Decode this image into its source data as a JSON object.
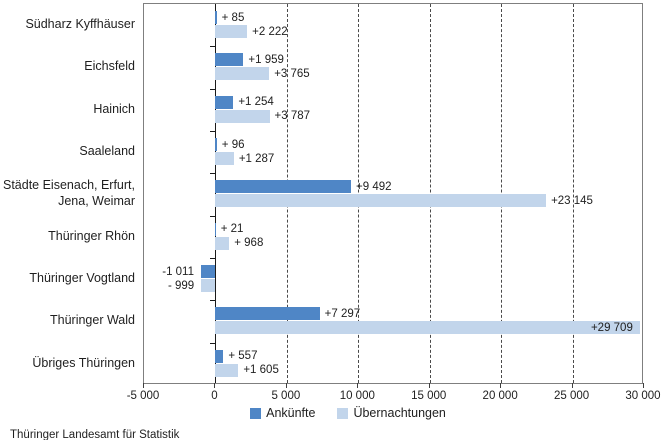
{
  "source": "Thüringer Landesamt für Statistik",
  "colors": {
    "ankuenfte": "#4f86c6",
    "uebernachtungen": "#c2d5eb",
    "plot_border": "#7f7f7f",
    "gridline": "#4a4a4a",
    "zero_axis": "#1a1a1a",
    "text": "#212121"
  },
  "legend": {
    "items": [
      {
        "label": "Ankünfte"
      },
      {
        "label": "Übernachtungen"
      }
    ]
  },
  "chart_data": {
    "type": "bar",
    "orientation": "horizontal",
    "title": "",
    "xlabel": "",
    "ylabel": "",
    "xlim": [
      -5000,
      30000
    ],
    "grid": "dashed-vertical",
    "legend_position": "bottom",
    "categories": [
      "Südharz Kyffhäuser",
      "Eichsfeld",
      "Hainich",
      "Saaleland",
      "Städte Eisenach, Erfurt,\nJena, Weimar",
      "Thüringer Rhön",
      "Thüringer Vogtland",
      "Thüringer Wald",
      "Übriges Thüringen"
    ],
    "series": [
      {
        "name": "Ankünfte",
        "color": "#4f86c6",
        "values": [
          85,
          1959,
          1254,
          96,
          9492,
          21,
          -1011,
          7297,
          557
        ],
        "labels": [
          "+ 85",
          "+1 959",
          "+1 254",
          "+ 96",
          "+9 492",
          "+ 21",
          "-1 011",
          "+7 297",
          "+ 557"
        ]
      },
      {
        "name": "Übernachtungen",
        "color": "#c2d5eb",
        "values": [
          2222,
          3765,
          3787,
          1287,
          23145,
          968,
          -999,
          29709,
          1605
        ],
        "labels": [
          "+2 222",
          "+3 765",
          "+3 787",
          "+1 287",
          "+23 145",
          "+ 968",
          "- 999",
          "+29 709",
          "+1 605"
        ]
      }
    ],
    "x_ticks": [
      -5000,
      0,
      5000,
      10000,
      15000,
      20000,
      25000,
      30000
    ],
    "x_tick_labels": [
      "-5 000",
      "0",
      "5 000",
      "10 000",
      "15 000",
      "20 000",
      "25 000",
      "30 000"
    ]
  }
}
